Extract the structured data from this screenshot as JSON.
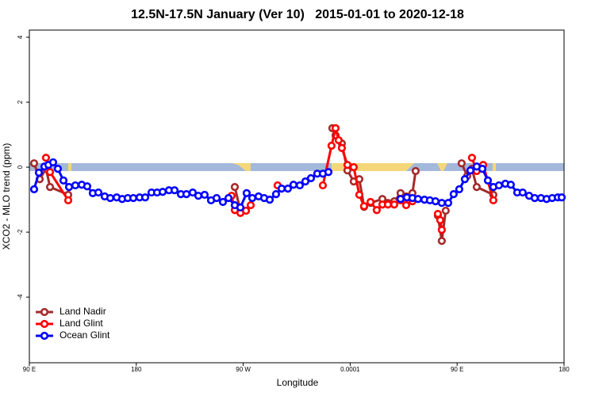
{
  "chart_data": {
    "type": "line",
    "title": "12.5N-17.5N January (Ver 10)   2015-01-01 to 2020-12-18",
    "x_label": "Longitude",
    "y_label": "XCO2 - MLO trend (ppm)",
    "xlim": [
      90,
      540
    ],
    "ylim": [
      -6.02,
      4.22
    ],
    "xticks": [
      {
        "value": 90,
        "label": "90 E"
      },
      180,
      {
        "value": 270,
        "label": "90 W"
      },
      0.0001,
      {
        "value": 450,
        "label": "90 E"
      },
      {
        "value": 540,
        "label": "180"
      }
    ],
    "yticks": [
      -4,
      -2,
      0,
      2,
      4
    ],
    "legend": "bottom-left",
    "series": [
      {
        "name": "Land Nadir",
        "color": "#a52a2a",
        "x": [
          94.0,
          98.7,
          104.0,
          107.4,
          122.7,
          200,
          262.9,
          267.6,
          272.3,
          330,
          345.0,
          347.7,
          353.0,
          357.7,
          363.0,
          367.7,
          371.7,
          377.1,
          387.1,
          391.8,
          397.1,
          402.4,
          407.1,
          412.4,
          415.1,
          420,
          433.8,
          437.1,
          440.4,
          450,
          453.8,
          458.5,
          462.5,
          466.5,
          480.5
        ],
        "values": [
          0.12,
          -0.37,
          -0.05,
          -0.61,
          -0.85,
          null,
          -0.61,
          -1.34,
          -1.34,
          null,
          1.2,
          0.98,
          0.73,
          -0.1,
          -0.44,
          -0.37,
          -1.22,
          -1.1,
          -0.98,
          -1.1,
          -1.05,
          -0.8,
          -0.9,
          -0.8,
          -0.12,
          null,
          -1.49,
          -2.27,
          -1.34,
          null,
          0.12,
          -0.27,
          -0.05,
          -0.61,
          -0.85
        ]
      },
      {
        "name": "Land Glint",
        "color": "#ff0000",
        "x": [
          104.0,
          107.4,
          122.7,
          200,
          260.2,
          262.9,
          267.6,
          272.3,
          276.3,
          290,
          298.9,
          330,
          337.0,
          344.3,
          347.7,
          350.3,
          353.0,
          357.7,
          363.0,
          367.7,
          371.7,
          377.1,
          382.4,
          387.1,
          391.8,
          397.1,
          402.4,
          407.1,
          412.4,
          420,
          433.8,
          435.8,
          437.1,
          450,
          462.5,
          466.5,
          471.9,
          480.5
        ],
        "values": [
          0.29,
          -0.15,
          -1.02,
          null,
          -0.88,
          -1.32,
          -1.41,
          -1.34,
          -1.17,
          null,
          -0.56,
          null,
          -0.56,
          0.66,
          1.2,
          0.83,
          0.59,
          0.07,
          0.0,
          -0.85,
          -1.2,
          -1.07,
          -1.32,
          -1.15,
          -1.15,
          -1.15,
          -1.02,
          -1.17,
          -1.05,
          null,
          -1.44,
          -1.63,
          -1.93,
          null,
          0.29,
          -0.12,
          0.07,
          -1.02
        ]
      },
      {
        "name": "Ocean Glint",
        "color": "#0000ff",
        "x": [
          94.0,
          98.0,
          102.7,
          106.0,
          110.0,
          114.0,
          118.7,
          123.4,
          128.7,
          134.1,
          138.7,
          143.4,
          148.1,
          153.4,
          158.1,
          163.5,
          168.1,
          172.8,
          177.5,
          182.8,
          187.5,
          192.8,
          197.5,
          202.2,
          207.5,
          212.2,
          217.5,
          222.2,
          227.5,
          232.2,
          237.5,
          242.9,
          247.6,
          252.9,
          257.6,
          262.9,
          267.6,
          272.9,
          277.6,
          282.9,
          287.6,
          292.3,
          297.6,
          302.3,
          307.6,
          312.3,
          317.6,
          322.3,
          327.0,
          332.3,
          337.0,
          341.7,
          372,
          402.4,
          407.7,
          412.4,
          417.1,
          422.5,
          427.1,
          431.8,
          437.1,
          442.5,
          447.1,
          451.8,
          456.5,
          461.2,
          466.5,
          471.2,
          475.9,
          480.5,
          485.2,
          490.6,
          495.2,
          500.6,
          505.2,
          510.6,
          515.3,
          520.6,
          525.3,
          530.0,
          534.7,
          538.0
        ],
        "values": [
          -0.68,
          -0.17,
          0.02,
          0.07,
          0.15,
          -0.05,
          -0.41,
          -0.61,
          -0.56,
          -0.54,
          -0.59,
          -0.8,
          -0.78,
          -0.9,
          -0.95,
          -0.93,
          -0.98,
          -0.95,
          -0.95,
          -0.93,
          -0.93,
          -0.78,
          -0.78,
          -0.76,
          -0.71,
          -0.71,
          -0.83,
          -0.83,
          -0.78,
          -0.88,
          -0.85,
          -1.02,
          -0.95,
          -1.07,
          -0.95,
          -1.17,
          -1.24,
          -0.8,
          -0.95,
          -0.9,
          -0.95,
          -1.0,
          -0.83,
          -0.66,
          -0.66,
          -0.54,
          -0.56,
          -0.44,
          -0.34,
          -0.2,
          -0.2,
          -0.15,
          null,
          -0.98,
          -0.93,
          -0.95,
          -0.98,
          -1.0,
          -1.02,
          -1.05,
          -1.1,
          -1.1,
          -0.83,
          -0.68,
          -0.37,
          -0.1,
          0.02,
          -0.05,
          -0.41,
          -0.61,
          -0.56,
          -0.51,
          -0.54,
          -0.78,
          -0.78,
          -0.88,
          -0.95,
          -0.95,
          -0.98,
          -0.95,
          -0.93,
          -0.93
        ]
      }
    ]
  }
}
